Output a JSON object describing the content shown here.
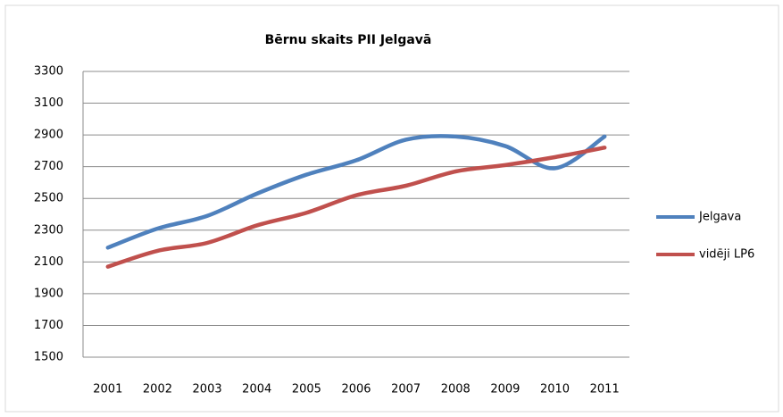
{
  "chart_data": {
    "type": "line",
    "title": "Bērnu skaits PII Jelgavā",
    "categories": [
      "2001",
      "2002",
      "2003",
      "2004",
      "2005",
      "2006",
      "2007",
      "2008",
      "2009",
      "2010",
      "2011"
    ],
    "series": [
      {
        "name": "Jelgava",
        "color": "#4f81bd",
        "values": [
          2190,
          2310,
          2390,
          2530,
          2650,
          2740,
          2870,
          2890,
          2830,
          2690,
          2890
        ]
      },
      {
        "name": "vidēji LP6",
        "color": "#c0504d",
        "values": [
          2070,
          2170,
          2220,
          2330,
          2410,
          2520,
          2580,
          2670,
          2710,
          2760,
          2820
        ]
      }
    ],
    "ylim": [
      1500,
      3300
    ],
    "yticks": [
      1500,
      1700,
      1900,
      2100,
      2300,
      2500,
      2700,
      2900,
      3100,
      3300
    ],
    "grid": true,
    "smooth": true,
    "legend": "right"
  }
}
